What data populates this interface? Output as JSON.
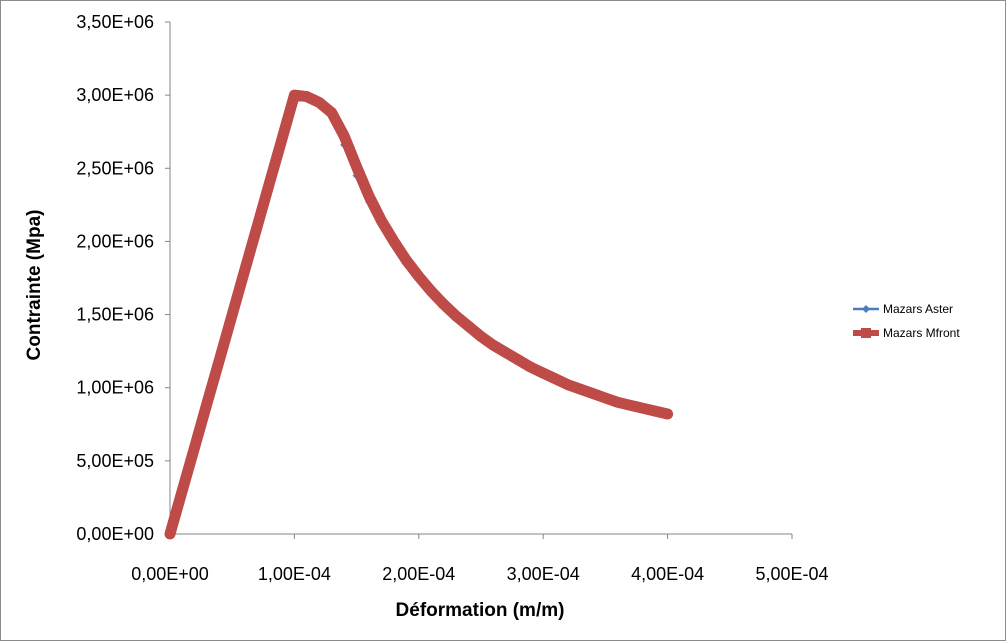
{
  "chart_data": {
    "type": "line",
    "title": "",
    "xlabel": "Déformation (m/m)",
    "ylabel": "Contrainte (Mpa)",
    "xlim": [
      0,
      0.0005
    ],
    "ylim": [
      0,
      3500000
    ],
    "x_ticks": [
      0,
      0.0001,
      0.0002,
      0.0003,
      0.0004,
      0.0005
    ],
    "x_tick_labels": [
      "0,00E+00",
      "1,00E-04",
      "2,00E-04",
      "3,00E-04",
      "4,00E-04",
      "5,00E-04"
    ],
    "y_ticks": [
      0,
      500000,
      1000000,
      1500000,
      2000000,
      2500000,
      3000000,
      3500000
    ],
    "y_tick_labels": [
      "0,00E+00",
      "5,00E+05",
      "1,00E+06",
      "1,50E+06",
      "2,00E+06",
      "2,50E+06",
      "3,00E+06",
      "3,50E+06"
    ],
    "grid": false,
    "legend_position": "right",
    "series": [
      {
        "name": "Mazars Aster",
        "color": "#4a7ebb",
        "marker": "diamond",
        "x": [
          0,
          1e-05,
          2e-05,
          3e-05,
          4e-05,
          5e-05,
          6e-05,
          7e-05,
          8e-05,
          9e-05,
          0.0001,
          0.00011,
          0.00012,
          0.00013,
          0.00014,
          0.00015,
          0.00016,
          0.00017,
          0.00018,
          0.00019,
          0.0002,
          0.00021,
          0.00022,
          0.00023,
          0.00024,
          0.00025,
          0.00026,
          0.00027,
          0.00028,
          0.00029,
          0.0003,
          0.00031,
          0.00032,
          0.00033,
          0.00034,
          0.00035,
          0.00036,
          0.00037,
          0.00038,
          0.00039,
          0.0004
        ],
        "y": [
          0,
          300000,
          600000,
          900000,
          1200000,
          1500000,
          1800000,
          2100000,
          2400000,
          2700000,
          3000000,
          2990000,
          2950000,
          2870000,
          2660000,
          2450000,
          2270000,
          2130000,
          2000000,
          1870000,
          1760000,
          1660000,
          1570000,
          1490000,
          1420000,
          1350000,
          1290000,
          1240000,
          1190000,
          1140000,
          1100000,
          1060000,
          1020000,
          990000,
          960000,
          930000,
          900000,
          880000,
          860000,
          840000,
          820000
        ]
      },
      {
        "name": "Mazars Mfront",
        "color": "#be4b48",
        "marker": "square",
        "x": [
          0,
          1e-05,
          2e-05,
          3e-05,
          4e-05,
          5e-05,
          6e-05,
          7e-05,
          8e-05,
          9e-05,
          0.0001,
          0.00011,
          0.00012,
          0.00013,
          0.00014,
          0.00015,
          0.00016,
          0.00017,
          0.00018,
          0.00019,
          0.0002,
          0.00021,
          0.00022,
          0.00023,
          0.00024,
          0.00025,
          0.00026,
          0.00027,
          0.00028,
          0.00029,
          0.0003,
          0.00031,
          0.00032,
          0.00033,
          0.00034,
          0.00035,
          0.00036,
          0.00037,
          0.00038,
          0.00039,
          0.0004
        ],
        "y": [
          0,
          300000,
          600000,
          900000,
          1200000,
          1500000,
          1800000,
          2100000,
          2400000,
          2700000,
          3000000,
          2990000,
          2950000,
          2880000,
          2720000,
          2510000,
          2310000,
          2140000,
          2000000,
          1870000,
          1760000,
          1660000,
          1570000,
          1490000,
          1420000,
          1350000,
          1290000,
          1240000,
          1190000,
          1140000,
          1100000,
          1060000,
          1020000,
          990000,
          960000,
          930000,
          900000,
          880000,
          860000,
          840000,
          820000
        ]
      }
    ]
  }
}
